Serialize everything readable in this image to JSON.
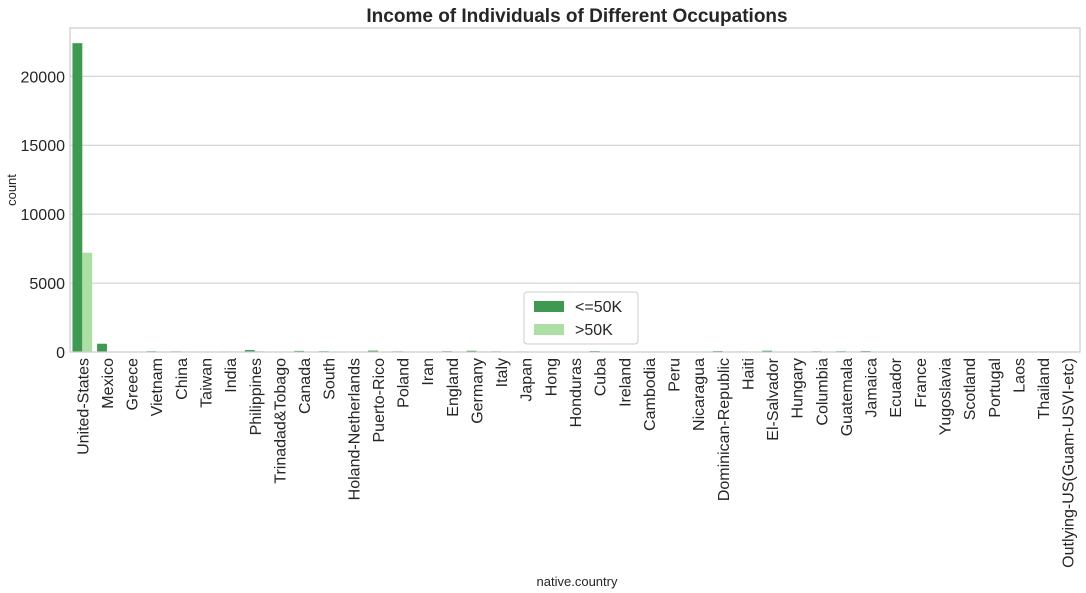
{
  "chart_data": {
    "type": "bar",
    "title": "Income of Individuals of Different Occupations",
    "xlabel": "native.country",
    "ylabel": "count",
    "ylim": [
      0,
      23500
    ],
    "yticks": [
      0,
      5000,
      10000,
      15000,
      20000
    ],
    "grid": true,
    "legend_position": "lower center",
    "categories": [
      "United-States",
      "Mexico",
      "Greece",
      "Vietnam",
      "China",
      "Taiwan",
      "India",
      "Philippines",
      "Trinadad&Tobago",
      "Canada",
      "South",
      "Holand-Netherlands",
      "Puerto-Rico",
      "Poland",
      "Iran",
      "England",
      "Germany",
      "Italy",
      "Japan",
      "Hong",
      "Honduras",
      "Cuba",
      "Ireland",
      "Cambodia",
      "Peru",
      "Nicaragua",
      "Dominican-Republic",
      "Haiti",
      "El-Salvador",
      "Hungary",
      "Columbia",
      "Guatemala",
      "Jamaica",
      "Ecuador",
      "France",
      "Yugoslavia",
      "Scotland",
      "Portugal",
      "Laos",
      "Thailand",
      "Outlying-US(Guam-USVI-etc)"
    ],
    "series": [
      {
        "name": "<=50K",
        "color": "#3d9a50",
        "values": [
          22400,
          600,
          20,
          60,
          50,
          20,
          40,
          140,
          15,
          80,
          60,
          1,
          100,
          50,
          25,
          60,
          90,
          50,
          40,
          15,
          12,
          70,
          20,
          15,
          30,
          30,
          70,
          40,
          95,
          10,
          55,
          60,
          70,
          25,
          15,
          10,
          10,
          30,
          15,
          15,
          10
        ]
      },
      {
        "name": ">50K",
        "color": "#addea3",
        "values": [
          7200,
          30,
          5,
          5,
          20,
          20,
          40,
          60,
          2,
          40,
          15,
          0,
          12,
          10,
          20,
          30,
          45,
          25,
          25,
          10,
          1,
          25,
          5,
          5,
          2,
          2,
          2,
          5,
          10,
          3,
          2,
          2,
          10,
          4,
          12,
          5,
          3,
          4,
          2,
          3,
          0
        ]
      }
    ]
  }
}
